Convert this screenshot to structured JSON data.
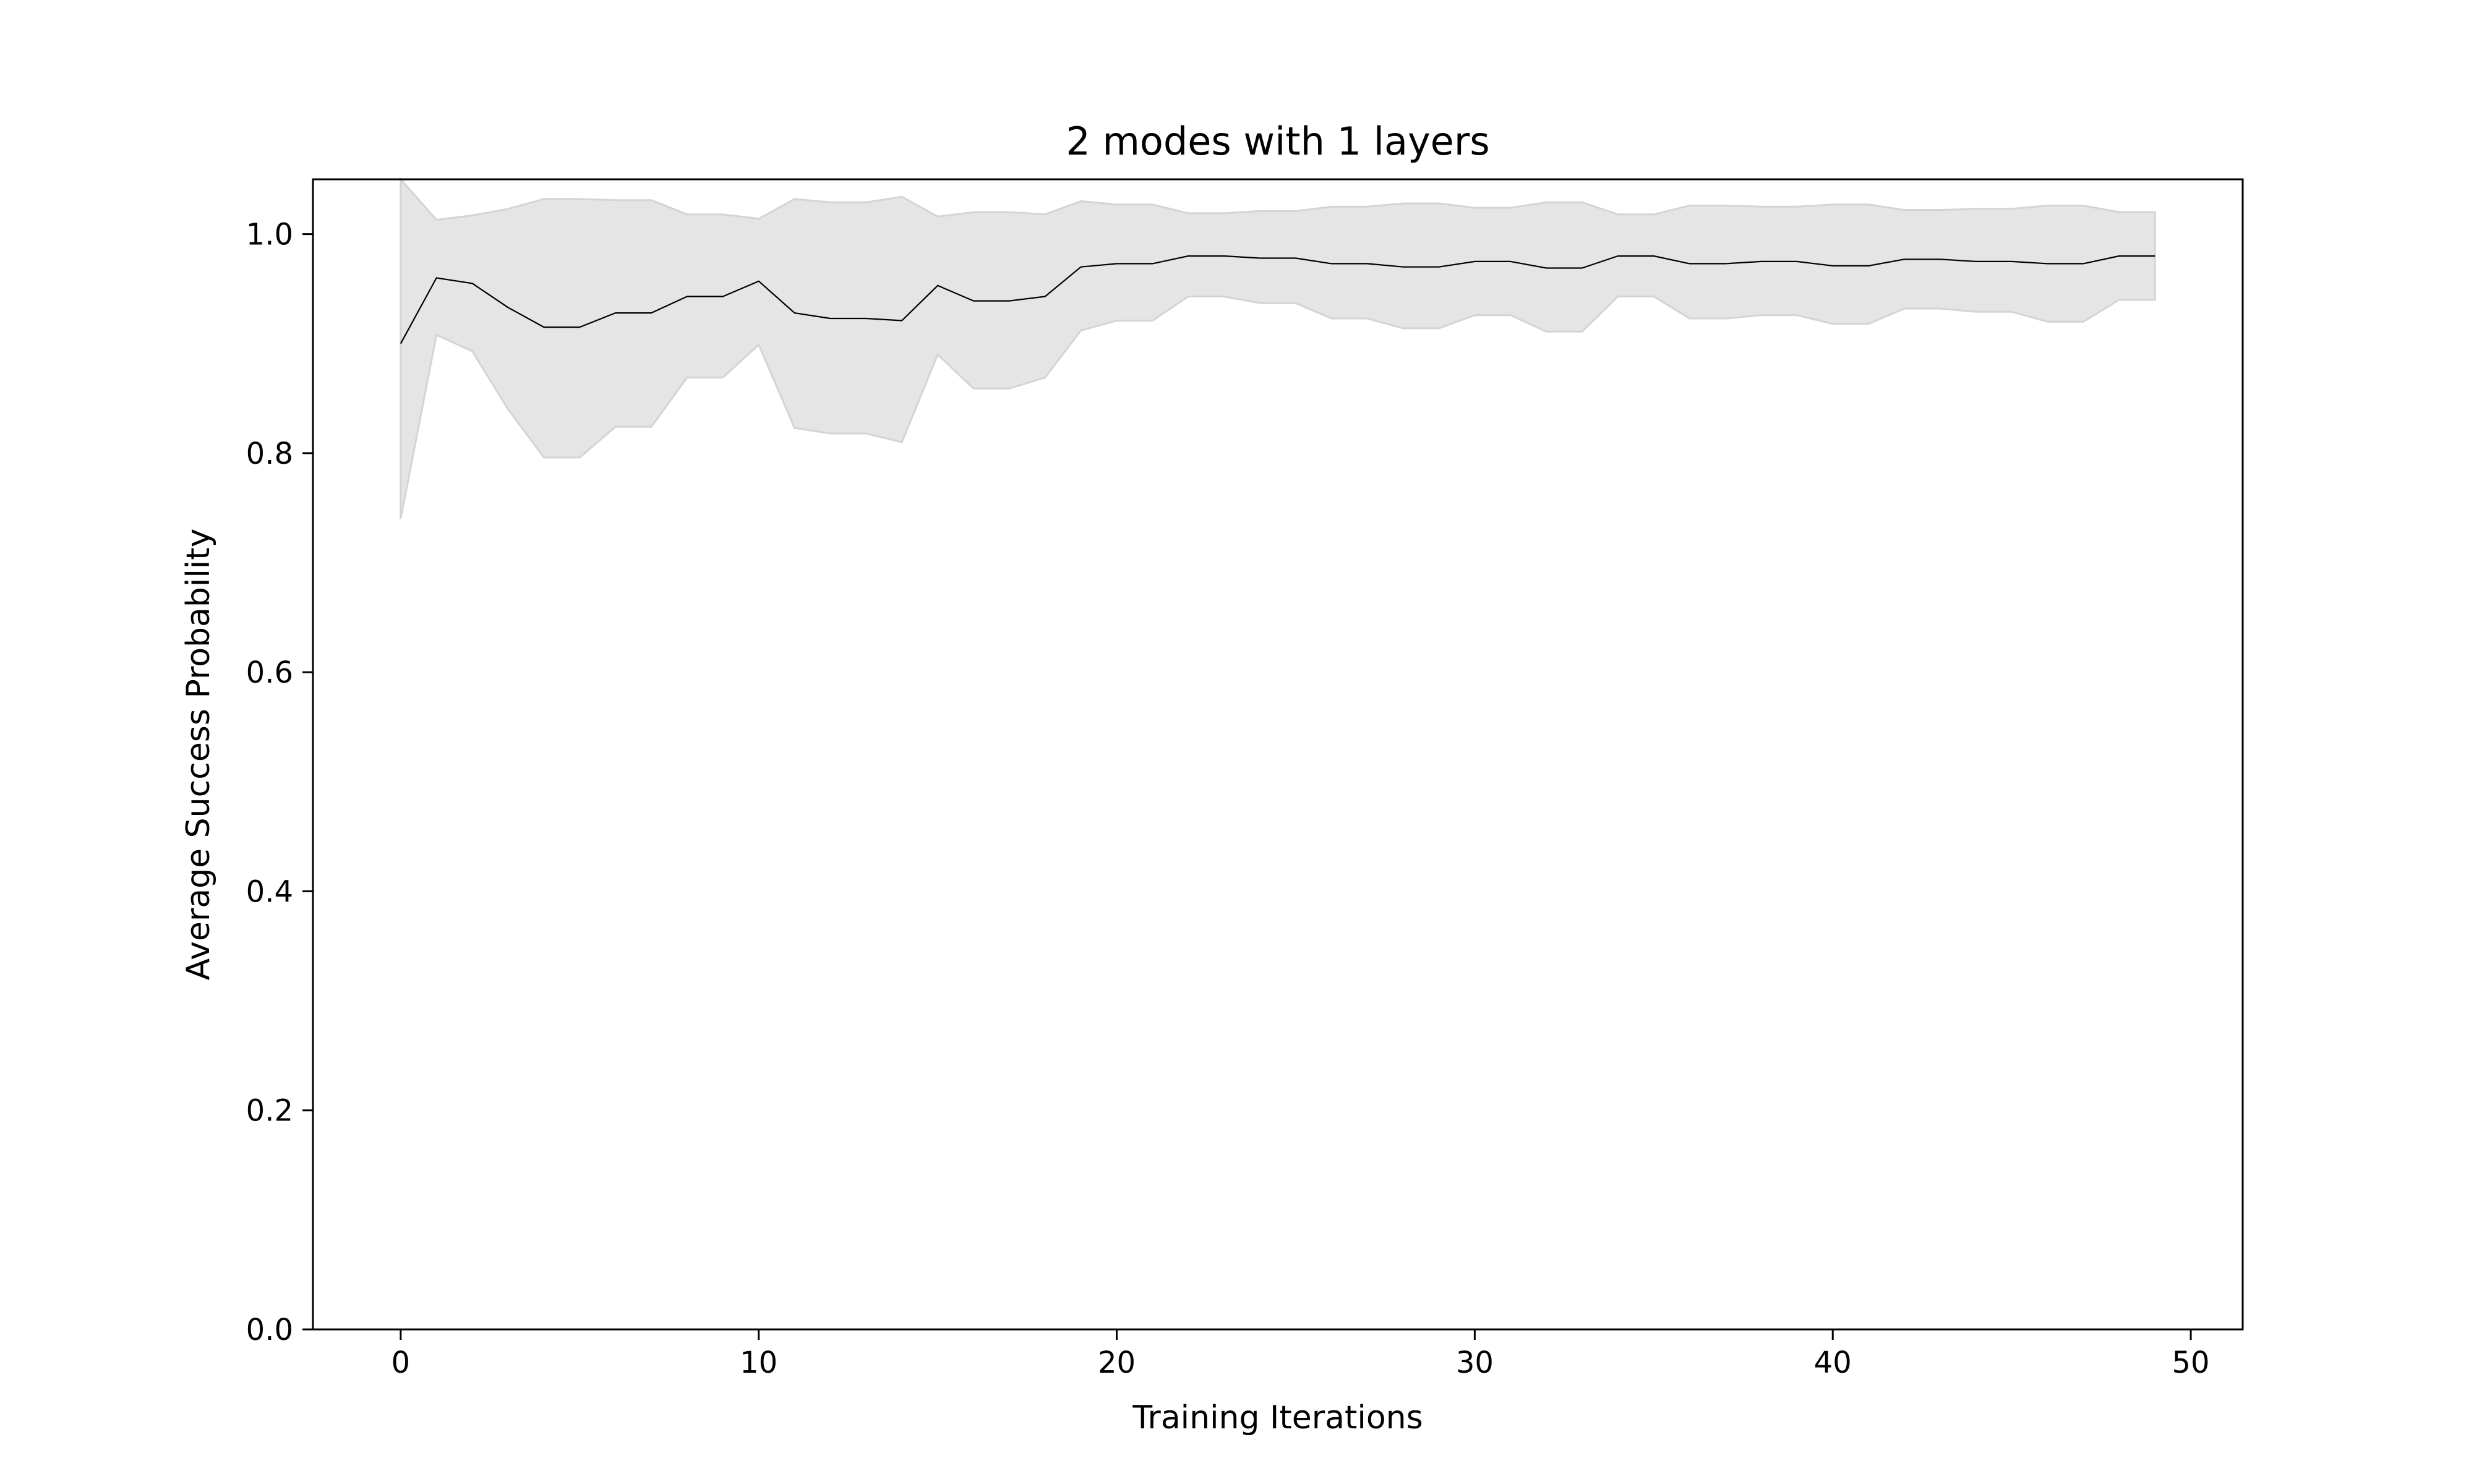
{
  "chart_data": {
    "type": "area",
    "title": "2 modes with 1 layers",
    "xlabel": "Training Iterations",
    "ylabel": "Average Success Probability",
    "xlim": [
      -2.45,
      51.45
    ],
    "ylim": [
      0.0,
      1.05
    ],
    "xticks": [
      0,
      10,
      20,
      30,
      40,
      50
    ],
    "yticks": [
      0.0,
      0.2,
      0.4,
      0.6,
      0.8,
      1.0
    ],
    "xtick_labels": [
      "0",
      "10",
      "20",
      "30",
      "40",
      "50"
    ],
    "ytick_labels": [
      "0.0",
      "0.2",
      "0.4",
      "0.6",
      "0.8",
      "1.0"
    ],
    "grid": false,
    "line_color": "#000000",
    "band_color": "#e5e5e5",
    "band_edge_color": "#d4d4d4",
    "x": [
      0,
      1,
      2,
      3,
      4,
      5,
      6,
      7,
      8,
      9,
      10,
      11,
      12,
      13,
      14,
      15,
      16,
      17,
      18,
      19,
      20,
      21,
      22,
      23,
      24,
      25,
      26,
      27,
      28,
      29,
      30,
      31,
      32,
      33,
      34,
      35,
      36,
      37,
      38,
      39,
      40,
      41,
      42,
      43,
      44,
      45,
      46,
      47,
      48,
      49
    ],
    "mean": [
      0.9,
      0.96,
      0.955,
      0.933,
      0.915,
      0.915,
      0.928,
      0.928,
      0.943,
      0.943,
      0.957,
      0.928,
      0.923,
      0.923,
      0.921,
      0.953,
      0.939,
      0.939,
      0.943,
      0.97,
      0.973,
      0.973,
      0.98,
      0.98,
      0.978,
      0.978,
      0.973,
      0.973,
      0.97,
      0.97,
      0.975,
      0.975,
      0.969,
      0.969,
      0.98,
      0.98,
      0.973,
      0.973,
      0.975,
      0.975,
      0.971,
      0.971,
      0.977,
      0.977,
      0.975,
      0.975,
      0.973,
      0.973,
      0.98,
      0.98
    ],
    "upper": [
      1.05,
      1.013,
      1.017,
      1.023,
      1.032,
      1.032,
      1.031,
      1.031,
      1.018,
      1.018,
      1.014,
      1.032,
      1.029,
      1.029,
      1.034,
      1.016,
      1.02,
      1.02,
      1.018,
      1.03,
      1.027,
      1.027,
      1.019,
      1.019,
      1.021,
      1.021,
      1.025,
      1.025,
      1.028,
      1.028,
      1.024,
      1.024,
      1.029,
      1.029,
      1.018,
      1.018,
      1.026,
      1.026,
      1.025,
      1.025,
      1.027,
      1.027,
      1.022,
      1.022,
      1.023,
      1.023,
      1.026,
      1.026,
      1.02,
      1.02
    ],
    "lower": [
      0.74,
      0.908,
      0.893,
      0.84,
      0.796,
      0.796,
      0.824,
      0.824,
      0.869,
      0.869,
      0.899,
      0.823,
      0.818,
      0.818,
      0.81,
      0.89,
      0.859,
      0.859,
      0.869,
      0.912,
      0.921,
      0.921,
      0.943,
      0.943,
      0.937,
      0.937,
      0.923,
      0.923,
      0.914,
      0.914,
      0.926,
      0.926,
      0.911,
      0.911,
      0.943,
      0.943,
      0.923,
      0.923,
      0.926,
      0.926,
      0.918,
      0.918,
      0.932,
      0.932,
      0.929,
      0.929,
      0.92,
      0.92,
      0.94,
      0.94
    ]
  }
}
